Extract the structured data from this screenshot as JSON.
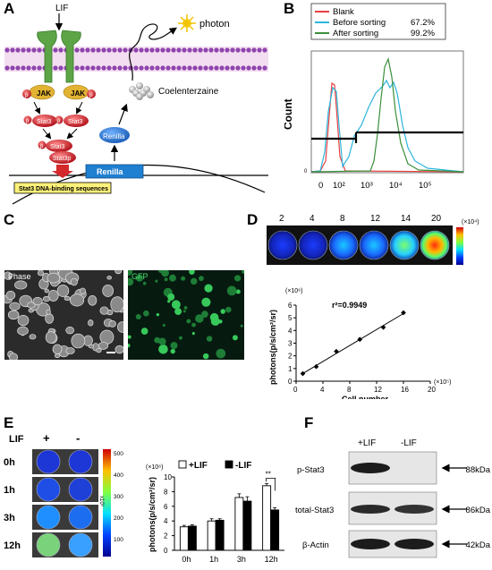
{
  "panels": {
    "a": {
      "letter": "A",
      "lif": "LIF",
      "photon": "photon",
      "jak_left": "JAK",
      "jak_right": "JAK",
      "p": "p",
      "stat3": "Stat3",
      "stat3p": "Stat3p",
      "coelenterazine": "Coelenterzaine",
      "renilla_protein": "Renilla",
      "renilla_gene": "Renilla",
      "binding_box": "Stat3 DNA-binding sequences"
    },
    "b": {
      "letter": "B",
      "ylabel": "Count",
      "legend": [
        {
          "label": "Blank",
          "pct": "",
          "color": "#e8403f"
        },
        {
          "label": "Before sorting",
          "pct": "67.2%",
          "color": "#2bb5dc"
        },
        {
          "label": "After sorting",
          "pct": "99.2%",
          "color": "#3b8f3a"
        }
      ],
      "xticks": [
        "0",
        "10²",
        "10³",
        "10⁴",
        "10⁵"
      ],
      "ytick": "0"
    },
    "c": {
      "letter": "C",
      "phase": "Phase",
      "gfp": "GFP"
    },
    "d": {
      "letter": "D",
      "top_labels": [
        "2",
        "4",
        "8",
        "12",
        "14",
        "20"
      ],
      "colorbar_unit": "(×10⁴)",
      "chart_data": {
        "type": "scatter",
        "xlabel": "Cell number",
        "ylabel": "photons(p/s/cm²/sr)",
        "x_multiplier": "(×10⁵)",
        "y_multiplier": "(×10⁶)",
        "annotation": "r²=0.9949",
        "xlim": [
          0,
          20
        ],
        "ylim": [
          0,
          6
        ],
        "xticks": [
          "0",
          "4",
          "8",
          "12",
          "16",
          "20"
        ],
        "yticks": [
          "0",
          "1",
          "2",
          "3",
          "4",
          "5",
          "6"
        ],
        "x": [
          1,
          3,
          6,
          9.5,
          13,
          16
        ],
        "y": [
          0.6,
          1.15,
          2.35,
          3.3,
          4.25,
          5.4
        ]
      }
    },
    "e": {
      "letter": "E",
      "lif": "LIF",
      "plus": "+",
      "minus": "-",
      "time_labels": [
        "0h",
        "1h",
        "3h",
        "12h"
      ],
      "colorbar_ticks": [
        "500",
        "400",
        "300",
        "200",
        "100"
      ],
      "colorbar_unit": "x10³",
      "chart_data": {
        "type": "bar",
        "ylabel": "photons(p/s/cm²/sr)",
        "y_multiplier": "(×10⁶)",
        "categories": [
          "0h",
          "1h",
          "3h",
          "12h"
        ],
        "series": [
          {
            "name": "+LIF",
            "values": [
              3.2,
              4.0,
              7.2,
              8.8
            ],
            "errors": [
              0.2,
              0.3,
              0.5,
              0.3
            ],
            "color": "#ffffff"
          },
          {
            "name": "-LIF",
            "values": [
              3.3,
              4.1,
              6.7,
              5.5
            ],
            "errors": [
              0.2,
              0.2,
              0.6,
              0.3
            ],
            "color": "#000000"
          }
        ],
        "ylim": [
          0,
          10
        ],
        "yticks": [
          "0",
          "2",
          "4",
          "6",
          "8",
          "10"
        ],
        "significance": "**"
      }
    },
    "f": {
      "letter": "F",
      "col_plus": "+LIF",
      "col_minus": "-LIF",
      "rows": [
        {
          "label": "p-Stat3",
          "size": "88kDa"
        },
        {
          "label": "total-Stat3",
          "size": "86kDa"
        },
        {
          "label": "β-Actin",
          "size": "42kDa"
        }
      ]
    }
  }
}
